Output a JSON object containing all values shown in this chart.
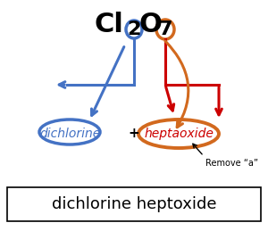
{
  "bg_color": "#ffffff",
  "formula_Cl": "Cl",
  "formula_2": "2",
  "formula_O": "O",
  "formula_7": "7",
  "blue_color": "#4472c4",
  "orange_color": "#d2691e",
  "red_color": "#cc0000",
  "dichlorine_text": "dichlorine",
  "plus_text": "+",
  "heptaoxide_text": "heptaoxide",
  "remove_text": "Remove “a”",
  "bottom_text": "dichlorine heptoxide",
  "fig_width": 3.0,
  "fig_height": 2.59,
  "dpi": 100
}
